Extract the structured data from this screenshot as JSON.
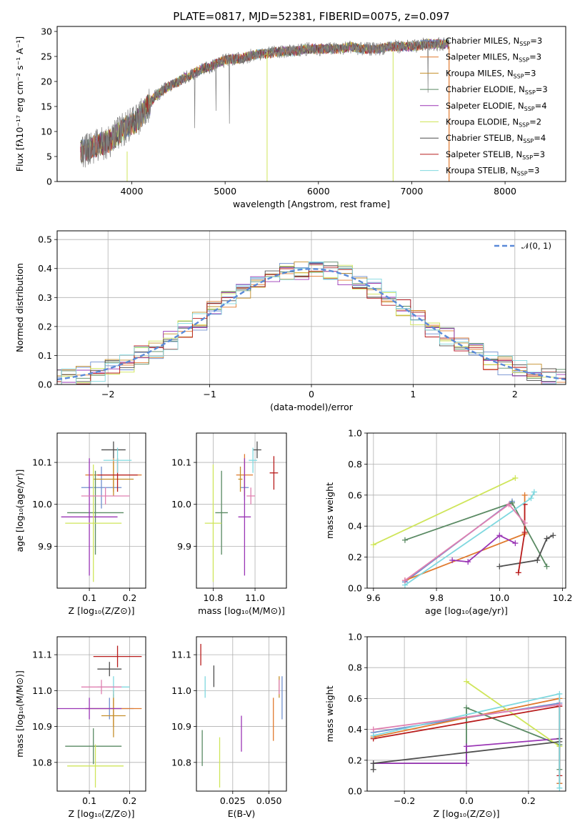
{
  "figure": {
    "title": "PLATE=0817, MJD=52381, FIBERID=0075, z=0.097"
  },
  "models": [
    {
      "label": "Chabrier MILES, N",
      "sub": "SSP",
      "suffix": "=3",
      "color": "#6f8fcf"
    },
    {
      "label": "Salpeter MILES, N",
      "sub": "SSP",
      "suffix": "=3",
      "color": "#e07a2e"
    },
    {
      "label": "Kroupa MILES, N",
      "sub": "SSP",
      "suffix": "=3",
      "color": "#c58f2a"
    },
    {
      "label": "Chabrier ELODIE, N",
      "sub": "SSP",
      "suffix": "=3",
      "color": "#5a8a63"
    },
    {
      "label": "Salpeter ELODIE, N",
      "sub": "SSP",
      "suffix": "=4",
      "color": "#9a35b5"
    },
    {
      "label": "Kroupa ELODIE, N",
      "sub": "SSP",
      "suffix": "=2",
      "color": "#cfe55a"
    },
    {
      "label": "Chabrier STELIB, N",
      "sub": "SSP",
      "suffix": "=4",
      "color": "#4f4f4f"
    },
    {
      "label": "Salpeter STELIB, N",
      "sub": "SSP",
      "suffix": "=3",
      "color": "#b81c1c"
    },
    {
      "label": "Kroupa STELIB, N",
      "sub": "SSP",
      "suffix": "=3",
      "color": "#7fd8df"
    }
  ],
  "chart_data": [
    {
      "id": "spectrum",
      "type": "line",
      "xlabel": "wavelength [Angstrom, rest frame]",
      "ylabel": "Flux [fλ10⁻¹⁷ erg cm⁻² s⁻¹ A⁻¹]",
      "xlim": [
        3200,
        8650
      ],
      "ylim": [
        0,
        31
      ],
      "xticks": [
        4000,
        5000,
        6000,
        7000,
        8000
      ],
      "yticks": [
        0,
        5,
        10,
        15,
        20,
        25,
        30
      ],
      "data_color": "#808080",
      "data": {
        "x": [
          3450,
          3550,
          3650,
          3750,
          3850,
          3950,
          4050,
          4150,
          4250,
          4350,
          4450,
          4550,
          4650,
          4750,
          4850,
          4950,
          5050,
          5150,
          5250,
          5350,
          5450,
          5550,
          5650,
          5750,
          5850,
          5950,
          6050,
          6150,
          6250,
          6350,
          6450,
          6550,
          6650,
          6750,
          6850,
          6950,
          7050,
          7150,
          7250,
          7350,
          7400
        ],
        "y": [
          6,
          6.5,
          7.5,
          8,
          9.5,
          11,
          12,
          14.5,
          17,
          18.5,
          19.5,
          20.5,
          21.5,
          22.5,
          23,
          24,
          24.5,
          24.5,
          25,
          25.5,
          25.5,
          26,
          26,
          26,
          26.5,
          26.5,
          26.5,
          26.5,
          26.5,
          27,
          26.5,
          26.5,
          26.5,
          27,
          27,
          27,
          27,
          27.5,
          27.5,
          27.5,
          27.5
        ]
      },
      "legend_position": "top-right"
    },
    {
      "id": "residuals",
      "type": "line",
      "xlabel": "(data-model)/error",
      "ylabel": "Normed distribution",
      "xlim": [
        -2.5,
        2.5
      ],
      "ylim": [
        0,
        0.53
      ],
      "xticks": [
        -2,
        -1,
        0,
        1,
        2
      ],
      "yticks": [
        0.0,
        0.1,
        0.2,
        0.3,
        0.4,
        0.5
      ],
      "grid": true,
      "legend": "𝒩(0, 1)",
      "legend_color": "#5a8ad8",
      "legend_position": "top-right"
    },
    {
      "id": "age_vs_Z",
      "type": "scatter",
      "xlabel": "Z [log₁₀(Z/Z⊙)]",
      "ylabel": "age  [log₁₀(age/yr)]",
      "xlim": [
        0.02,
        0.24
      ],
      "ylim": [
        9.8,
        10.17
      ],
      "xticks": [
        0.1,
        0.2
      ],
      "yticks": [
        9.9,
        10.0,
        10.1
      ],
      "grid": true,
      "points": [
        {
          "x": 0.13,
          "y": 10.04,
          "xerr": 0.05,
          "yerr": 0.05
        },
        {
          "x": 0.16,
          "y": 10.07,
          "xerr": 0.07,
          "yerr": 0.04
        },
        {
          "x": 0.16,
          "y": 10.06,
          "xerr": 0.05,
          "yerr": 0.04
        },
        {
          "x": 0.115,
          "y": 9.98,
          "xerr": 0.07,
          "yerr": 0.1
        },
        {
          "x": 0.1,
          "y": 9.97,
          "xerr": 0.07,
          "yerr": 0.14
        },
        {
          "x": 0.11,
          "y": 9.955,
          "xerr": 0.07,
          "yerr": 0.14
        },
        {
          "x": 0.16,
          "y": 10.13,
          "xerr": 0.03,
          "yerr": 0.02
        },
        {
          "x": 0.17,
          "y": 10.07,
          "xerr": 0.05,
          "yerr": 0.04
        },
        {
          "x": 0.17,
          "y": 10.105,
          "xerr": 0.035,
          "yerr": 0.03
        },
        {
          "x": 0.14,
          "y": 10.02,
          "xerr": 0.06,
          "yerr": 0.02
        }
      ]
    },
    {
      "id": "age_vs_mass",
      "type": "scatter",
      "xlabel": "mass [log₁₀(M/M⊙)]",
      "ylabel": "",
      "xlim": [
        10.72,
        11.15
      ],
      "ylim": [
        9.8,
        10.17
      ],
      "xticks": [
        10.8,
        11.0
      ],
      "yticks": [
        9.9,
        10.0,
        10.1
      ],
      "grid": true,
      "points": [
        {
          "x": 10.95,
          "y": 10.04,
          "xerr": 0.02,
          "yerr": 0.03
        },
        {
          "x": 10.95,
          "y": 10.07,
          "xerr": 0.04,
          "yerr": 0.05
        },
        {
          "x": 10.93,
          "y": 10.06,
          "xerr": 0.01,
          "yerr": 0.03
        },
        {
          "x": 10.84,
          "y": 9.98,
          "xerr": 0.03,
          "yerr": 0.1
        },
        {
          "x": 10.95,
          "y": 9.97,
          "xerr": 0.03,
          "yerr": 0.14
        },
        {
          "x": 10.8,
          "y": 9.955,
          "xerr": 0.04,
          "yerr": 0.14
        },
        {
          "x": 11.01,
          "y": 10.13,
          "xerr": 0.02,
          "yerr": 0.02
        },
        {
          "x": 11.09,
          "y": 10.075,
          "xerr": 0.02,
          "yerr": 0.04
        },
        {
          "x": 10.99,
          "y": 10.105,
          "xerr": 0.02,
          "yerr": 0.03
        },
        {
          "x": 10.98,
          "y": 10.02,
          "xerr": 0.02,
          "yerr": 0.02
        }
      ]
    },
    {
      "id": "massweight_vs_age",
      "type": "line",
      "xlabel": "age  [log₁₀(age/yr)]",
      "ylabel": "mass weight",
      "xlim": [
        9.58,
        10.21
      ],
      "ylim": [
        0,
        1
      ],
      "xticks": [
        9.6,
        9.8,
        10.0,
        10.2
      ],
      "yticks": [
        0.0,
        0.2,
        0.4,
        0.6,
        0.8,
        1.0
      ],
      "grid": true,
      "series": [
        {
          "model": 0,
          "x": [
            9.7,
            10.04
          ],
          "y": [
            0.04,
            0.56
          ]
        },
        {
          "model": 1,
          "x": [
            9.7,
            10.08,
            10.08
          ],
          "y": [
            0.05,
            0.35,
            0.6
          ]
        },
        {
          "model": 3,
          "x": [
            9.7,
            10.04,
            10.15
          ],
          "y": [
            0.31,
            0.55,
            0.14
          ]
        },
        {
          "model": 4,
          "x": [
            9.85,
            9.9,
            10.0,
            10.05
          ],
          "y": [
            0.18,
            0.17,
            0.34,
            0.29
          ]
        },
        {
          "model": 5,
          "x": [
            9.6,
            10.05
          ],
          "y": [
            0.28,
            0.71
          ]
        },
        {
          "model": 6,
          "x": [
            10.0,
            10.12,
            10.15,
            10.17
          ],
          "y": [
            0.14,
            0.18,
            0.32,
            0.34
          ]
        },
        {
          "model": 7,
          "x": [
            10.06,
            10.08,
            10.08
          ],
          "y": [
            0.1,
            0.36,
            0.54
          ]
        },
        {
          "model": 8,
          "x": [
            9.7,
            10.1,
            10.11
          ],
          "y": [
            0.02,
            0.58,
            0.62
          ]
        },
        {
          "model": 2,
          "x": [
            9.7,
            10.03,
            10.08
          ],
          "y": [
            0.05,
            0.54,
            0.42
          ],
          "color": "#e07fb0"
        }
      ]
    },
    {
      "id": "mass_vs_Z",
      "type": "scatter",
      "xlabel": "Z [log₁₀(Z/Z⊙)]",
      "ylabel": "mass [log₁₀(M/M⊙)]",
      "xlim": [
        0.02,
        0.24
      ],
      "ylim": [
        10.72,
        11.15
      ],
      "xticks": [
        0.1,
        0.2
      ],
      "yticks": [
        10.8,
        10.9,
        11.0,
        11.1
      ],
      "grid": true,
      "points": [
        {
          "x": 0.15,
          "y": 10.95,
          "xerr": 0.06,
          "yerr": 0.03
        },
        {
          "x": 0.16,
          "y": 10.95,
          "xerr": 0.07,
          "yerr": 0.05
        },
        {
          "x": 0.16,
          "y": 10.93,
          "xerr": 0.03,
          "yerr": 0.06
        },
        {
          "x": 0.11,
          "y": 10.845,
          "xerr": 0.07,
          "yerr": 0.05
        },
        {
          "x": 0.1,
          "y": 10.95,
          "xerr": 0.08,
          "yerr": 0.03
        },
        {
          "x": 0.115,
          "y": 10.79,
          "xerr": 0.07,
          "yerr": 0.06
        },
        {
          "x": 0.15,
          "y": 11.06,
          "xerr": 0.03,
          "yerr": 0.02
        },
        {
          "x": 0.17,
          "y": 11.095,
          "xerr": 0.06,
          "yerr": 0.03
        },
        {
          "x": 0.16,
          "y": 11.01,
          "xerr": 0.04,
          "yerr": 0.03
        },
        {
          "x": 0.13,
          "y": 11.01,
          "xerr": 0.05,
          "yerr": 0.02
        }
      ]
    },
    {
      "id": "mass_vs_EBV",
      "type": "scatter",
      "xlabel": "E(B-V)",
      "ylabel": "",
      "xlim": [
        0.0,
        0.062
      ],
      "ylim": [
        10.72,
        11.15
      ],
      "xticks": [
        0.025,
        0.05
      ],
      "xtick_labels": [
        "0.025",
        "0.050"
      ],
      "yticks": [
        10.8,
        10.9,
        11.0,
        11.1
      ],
      "grid": true,
      "points": [
        {
          "x": 0.059,
          "y": 10.98,
          "xerr": 0,
          "yerr": 0.06
        },
        {
          "x": 0.053,
          "y": 10.92,
          "xerr": 0,
          "yerr": 0.06
        },
        {
          "x": 0.057,
          "y": 11.01,
          "xerr": 0,
          "yerr": 0.03
        },
        {
          "x": 0.004,
          "y": 10.84,
          "xerr": 0,
          "yerr": 0.05
        },
        {
          "x": 0.031,
          "y": 10.88,
          "xerr": 0,
          "yerr": 0.05
        },
        {
          "x": 0.016,
          "y": 10.8,
          "xerr": 0,
          "yerr": 0.07
        },
        {
          "x": 0.012,
          "y": 11.04,
          "xerr": 0,
          "yerr": 0.03
        },
        {
          "x": 0.003,
          "y": 11.1,
          "xerr": 0,
          "yerr": 0.03
        },
        {
          "x": 0.006,
          "y": 11.01,
          "xerr": 0,
          "yerr": 0.03
        },
        {
          "x": 0.057,
          "y": 11.01,
          "xerr": 0,
          "yerr": 0.02
        }
      ]
    },
    {
      "id": "massweight_vs_Z",
      "type": "line",
      "xlabel": "Z [log₁₀(Z/Z⊙)]",
      "ylabel": "mass weight",
      "xlim": [
        -0.32,
        0.32
      ],
      "ylim": [
        0,
        1
      ],
      "xticks": [
        -0.2,
        0.0,
        0.2
      ],
      "yticks": [
        0.0,
        0.2,
        0.4,
        0.6,
        0.8,
        1.0
      ],
      "grid": true,
      "series": [
        {
          "model": 0,
          "x": [
            -0.3,
            0.3,
            0.3
          ],
          "y": [
            0.38,
            0.57,
            0.05
          ]
        },
        {
          "model": 1,
          "x": [
            -0.3,
            0.3,
            0.3
          ],
          "y": [
            0.35,
            0.6,
            0.05
          ]
        },
        {
          "model": 3,
          "x": [
            -0.3,
            0.0,
            0.0,
            0.3,
            0.3
          ],
          "y": [
            0.18,
            0.18,
            0.54,
            0.3,
            0.14
          ]
        },
        {
          "model": 4,
          "x": [
            -0.3,
            0.0,
            0.0,
            0.3
          ],
          "y": [
            0.18,
            0.18,
            0.29,
            0.34
          ]
        },
        {
          "model": 5,
          "x": [
            0.0,
            0.3
          ],
          "y": [
            0.71,
            0.29
          ]
        },
        {
          "model": 6,
          "x": [
            -0.3,
            -0.3,
            0.3,
            0.3
          ],
          "y": [
            0.14,
            0.18,
            0.32,
            0.34
          ]
        },
        {
          "model": 7,
          "x": [
            -0.3,
            0.3,
            0.3
          ],
          "y": [
            0.34,
            0.55,
            0.1
          ]
        },
        {
          "model": 8,
          "x": [
            -0.3,
            0.3,
            0.3
          ],
          "y": [
            0.36,
            0.63,
            0.02
          ]
        },
        {
          "model": 2,
          "x": [
            -0.3,
            0.3
          ],
          "y": [
            0.4,
            0.56
          ],
          "color": "#e07fb0"
        }
      ]
    }
  ]
}
